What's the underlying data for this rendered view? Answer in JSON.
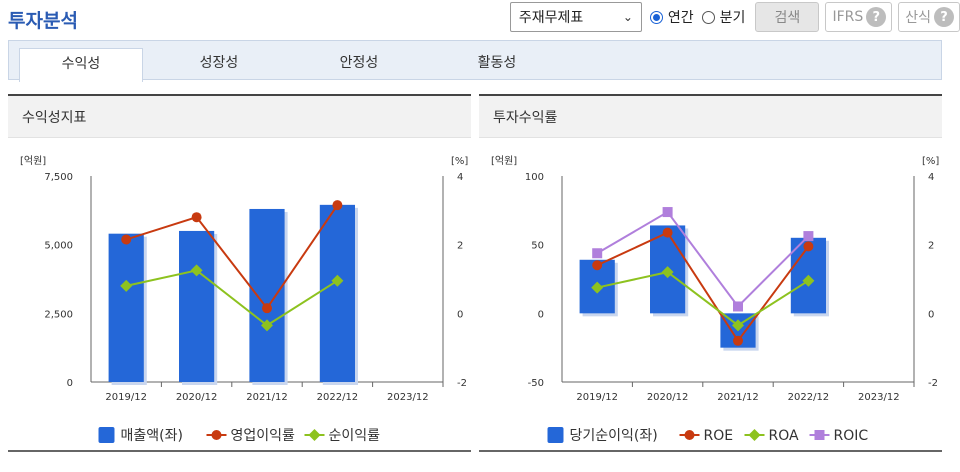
{
  "header": {
    "title": "투자분석",
    "select_value": "주재무제표",
    "radio_annual": "연간",
    "radio_quarter": "분기",
    "search_label": "검색",
    "ifrs_label": "IFRS",
    "formula_label": "산식",
    "help_glyph": "?"
  },
  "tabs": [
    {
      "label": "수익성",
      "active": true
    },
    {
      "label": "성장성",
      "active": false
    },
    {
      "label": "안정성",
      "active": false
    },
    {
      "label": "활동성",
      "active": false
    }
  ],
  "colors": {
    "bar": "#2467d8",
    "orange": "#c83a10",
    "green": "#8dc21f",
    "purple": "#b07fdc"
  },
  "chart_data": [
    {
      "type": "bar",
      "panel_title": "수익성지표",
      "left_unit": "[억원]",
      "right_unit": "[%]",
      "categories": [
        "2019/12",
        "2020/12",
        "2021/12",
        "2022/12",
        "2023/12"
      ],
      "y_left_ticks": [
        "7,500",
        "5,000",
        "2,500",
        "0"
      ],
      "y_left_range": [
        0,
        7500
      ],
      "y_right_ticks": [
        "4",
        "2",
        "0",
        "-2"
      ],
      "y_right_range": [
        -2,
        4
      ],
      "bars": {
        "name": "매출액(좌)",
        "values": [
          5400,
          5500,
          6300,
          6450,
          null
        ]
      },
      "lines": [
        {
          "name": "영업이익률",
          "color_key": "orange",
          "marker": "circle",
          "values": [
            2.15,
            2.8,
            0.15,
            3.15,
            null
          ]
        },
        {
          "name": "순이익률",
          "color_key": "green",
          "marker": "diamond",
          "values": [
            0.8,
            1.25,
            -0.35,
            0.95,
            null
          ]
        }
      ],
      "legend": [
        {
          "label": "매출액(좌)",
          "kind": "bar",
          "color_key": "bar"
        },
        {
          "label": "영업이익률",
          "kind": "circle",
          "color_key": "orange"
        },
        {
          "label": "순이익률",
          "kind": "diamond",
          "color_key": "green"
        }
      ]
    },
    {
      "type": "bar",
      "panel_title": "투자수익률",
      "left_unit": "[억원]",
      "right_unit": "[%]",
      "categories": [
        "2019/12",
        "2020/12",
        "2021/12",
        "2022/12",
        "2023/12"
      ],
      "y_left_ticks": [
        "100",
        "50",
        "0",
        "-50"
      ],
      "y_left_range": [
        -50,
        100
      ],
      "y_right_ticks": [
        "4",
        "2",
        "0",
        "-2"
      ],
      "y_right_range": [
        -2,
        4
      ],
      "bars": {
        "name": "당기순이익(좌)",
        "values": [
          39,
          64,
          -25,
          55,
          null
        ]
      },
      "lines": [
        {
          "name": "ROE",
          "color_key": "orange",
          "marker": "circle",
          "values": [
            1.4,
            2.35,
            -0.8,
            1.95,
            null
          ]
        },
        {
          "name": "ROA",
          "color_key": "green",
          "marker": "diamond",
          "values": [
            0.75,
            1.2,
            -0.35,
            0.95,
            null
          ]
        },
        {
          "name": "ROIC",
          "color_key": "purple",
          "marker": "square",
          "values": [
            1.75,
            2.95,
            0.2,
            2.25,
            null
          ]
        }
      ],
      "legend": [
        {
          "label": "당기순이익(좌)",
          "kind": "bar",
          "color_key": "bar"
        },
        {
          "label": "ROE",
          "kind": "circle",
          "color_key": "orange"
        },
        {
          "label": "ROA",
          "kind": "diamond",
          "color_key": "green"
        },
        {
          "label": "ROIC",
          "kind": "square",
          "color_key": "purple"
        }
      ]
    }
  ]
}
